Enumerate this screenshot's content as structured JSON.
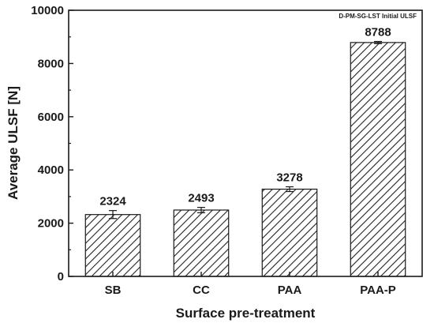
{
  "chart_data": {
    "type": "bar",
    "legend_text": "D-PM-SG-LST Initial ULSF",
    "legend_placement": "top-right",
    "categories": [
      "SB",
      "CC",
      "PAA",
      "PAA-P"
    ],
    "values": [
      2324,
      2493,
      3278,
      8788
    ],
    "errors": [
      150,
      100,
      90,
      40
    ],
    "data_labels": [
      "2324",
      "2493",
      "3278",
      "8788"
    ],
    "xlabel": "Surface pre-treatment",
    "ylabel": "Average ULSF [N]",
    "ylim": [
      0,
      10000
    ],
    "yticks": [
      0,
      2000,
      4000,
      6000,
      8000,
      10000
    ],
    "grid": false,
    "bar_fill": "hatched diagonal",
    "colors": {
      "hatch": "#222222",
      "axis": "#1a1a1a",
      "background": "#ffffff"
    }
  }
}
